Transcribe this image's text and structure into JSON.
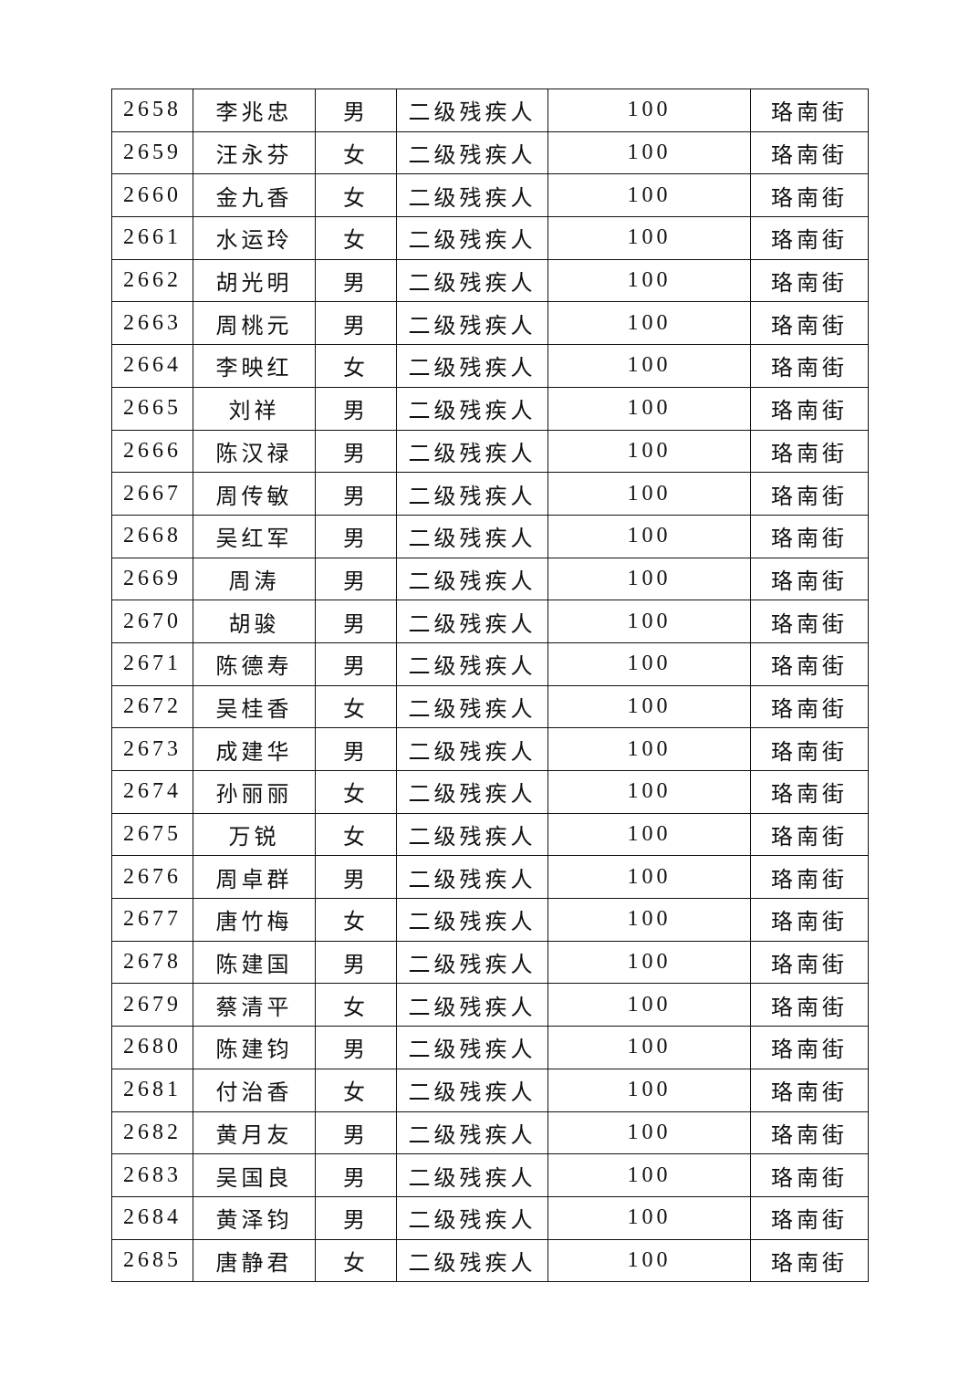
{
  "table": {
    "rows": [
      [
        "2658",
        "李兆忠",
        "男",
        "二级残疾人",
        "100",
        "珞南街"
      ],
      [
        "2659",
        "汪永芬",
        "女",
        "二级残疾人",
        "100",
        "珞南街"
      ],
      [
        "2660",
        "金九香",
        "女",
        "二级残疾人",
        "100",
        "珞南街"
      ],
      [
        "2661",
        "水运玲",
        "女",
        "二级残疾人",
        "100",
        "珞南街"
      ],
      [
        "2662",
        "胡光明",
        "男",
        "二级残疾人",
        "100",
        "珞南街"
      ],
      [
        "2663",
        "周桃元",
        "男",
        "二级残疾人",
        "100",
        "珞南街"
      ],
      [
        "2664",
        "李映红",
        "女",
        "二级残疾人",
        "100",
        "珞南街"
      ],
      [
        "2665",
        "刘祥",
        "男",
        "二级残疾人",
        "100",
        "珞南街"
      ],
      [
        "2666",
        "陈汉禄",
        "男",
        "二级残疾人",
        "100",
        "珞南街"
      ],
      [
        "2667",
        "周传敏",
        "男",
        "二级残疾人",
        "100",
        "珞南街"
      ],
      [
        "2668",
        "吴红军",
        "男",
        "二级残疾人",
        "100",
        "珞南街"
      ],
      [
        "2669",
        "周涛",
        "男",
        "二级残疾人",
        "100",
        "珞南街"
      ],
      [
        "2670",
        "胡骏",
        "男",
        "二级残疾人",
        "100",
        "珞南街"
      ],
      [
        "2671",
        "陈德寿",
        "男",
        "二级残疾人",
        "100",
        "珞南街"
      ],
      [
        "2672",
        "吴桂香",
        "女",
        "二级残疾人",
        "100",
        "珞南街"
      ],
      [
        "2673",
        "成建华",
        "男",
        "二级残疾人",
        "100",
        "珞南街"
      ],
      [
        "2674",
        "孙丽丽",
        "女",
        "二级残疾人",
        "100",
        "珞南街"
      ],
      [
        "2675",
        "万锐",
        "女",
        "二级残疾人",
        "100",
        "珞南街"
      ],
      [
        "2676",
        "周卓群",
        "男",
        "二级残疾人",
        "100",
        "珞南街"
      ],
      [
        "2677",
        "唐竹梅",
        "女",
        "二级残疾人",
        "100",
        "珞南街"
      ],
      [
        "2678",
        "陈建国",
        "男",
        "二级残疾人",
        "100",
        "珞南街"
      ],
      [
        "2679",
        "蔡清平",
        "女",
        "二级残疾人",
        "100",
        "珞南街"
      ],
      [
        "2680",
        "陈建钧",
        "男",
        "二级残疾人",
        "100",
        "珞南街"
      ],
      [
        "2681",
        "付治香",
        "女",
        "二级残疾人",
        "100",
        "珞南街"
      ],
      [
        "2682",
        "黄月友",
        "男",
        "二级残疾人",
        "100",
        "珞南街"
      ],
      [
        "2683",
        "吴国良",
        "男",
        "二级残疾人",
        "100",
        "珞南街"
      ],
      [
        "2684",
        "黄泽钧",
        "男",
        "二级残疾人",
        "100",
        "珞南街"
      ],
      [
        "2685",
        "唐静君",
        "女",
        "二级残疾人",
        "100",
        "珞南街"
      ]
    ]
  }
}
